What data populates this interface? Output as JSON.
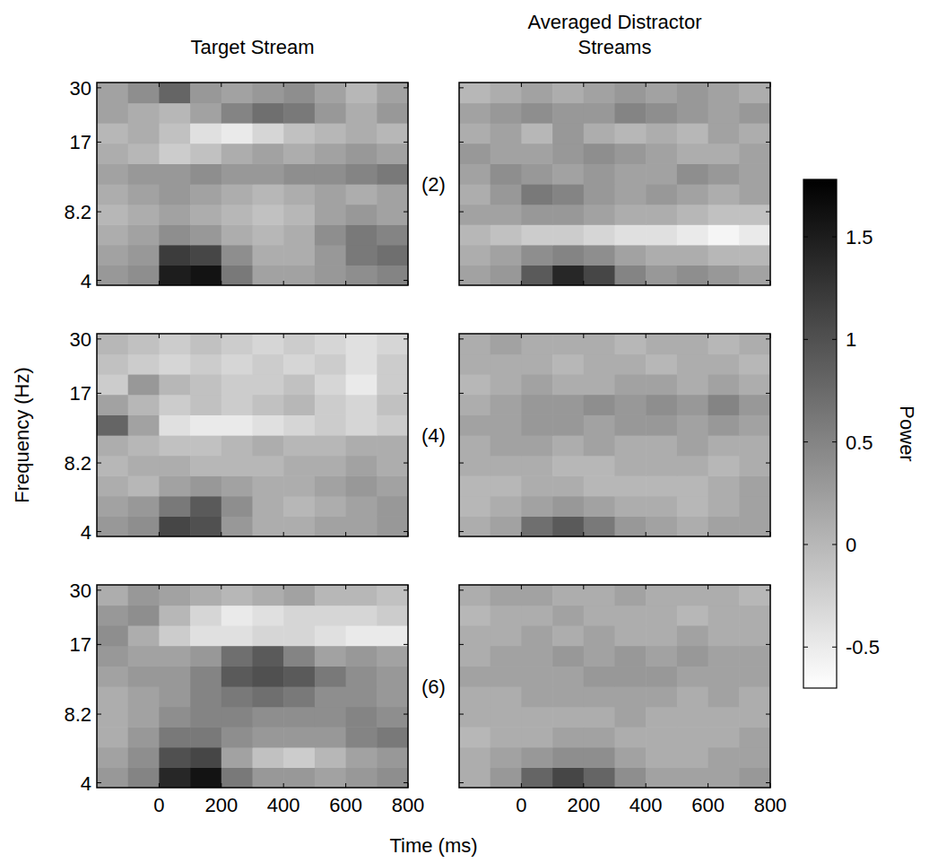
{
  "chart_data": {
    "type": "heatmap",
    "column_titles": [
      "Target Stream",
      "Averaged Distractor Streams"
    ],
    "row_labels": [
      "(2)",
      "(4)",
      "(6)"
    ],
    "xlabel": "Time (ms)",
    "ylabel": "Frequency (Hz)",
    "log": "y",
    "xlim": [
      -200,
      800
    ],
    "xticks": [
      0,
      200,
      400,
      600,
      800
    ],
    "ylim": [
      3.8,
      31.7
    ],
    "yticks": [
      4,
      8.2,
      17,
      30
    ],
    "x": [
      -150,
      -50,
      50,
      150,
      250,
      350,
      450,
      550,
      650,
      750
    ],
    "y": [
      4.23,
      5.22,
      6.46,
      7.98,
      9.87,
      12.2,
      15.1,
      18.7,
      23.1,
      28.5
    ],
    "colorbar": {
      "label": "Power",
      "range": [
        -0.7,
        1.78
      ],
      "ticks": [
        -0.5,
        0,
        0.5,
        1,
        1.5
      ]
    },
    "panels": [
      {
        "z": [
          [
            0.3,
            0.4,
            1.5,
            1.6,
            0.6,
            0.2,
            0.2,
            0.3,
            0.4,
            0.5
          ],
          [
            0.2,
            0.3,
            1.2,
            1.1,
            0.4,
            0.1,
            0.1,
            0.3,
            0.6,
            0.7
          ],
          [
            0.1,
            0.2,
            0.4,
            0.3,
            0.1,
            0,
            0.1,
            0.4,
            0.6,
            0.5
          ],
          [
            0,
            0.1,
            0.2,
            0.1,
            0,
            -0.1,
            0,
            0.2,
            0.3,
            0.2
          ],
          [
            0.1,
            0.2,
            0.3,
            0.2,
            0.1,
            0,
            0.1,
            0.2,
            0.1,
            0.2
          ],
          [
            0.2,
            0.3,
            0.3,
            0.4,
            0.3,
            0.3,
            0.4,
            0.4,
            0.5,
            0.6
          ],
          [
            0.1,
            0,
            -0.2,
            -0.1,
            0.1,
            0.2,
            0.1,
            0.2,
            0.3,
            0.2
          ],
          [
            0,
            0.1,
            -0.1,
            -0.4,
            -0.5,
            -0.3,
            -0.1,
            0,
            0.1,
            0
          ],
          [
            0.2,
            0.1,
            0,
            0.2,
            0.5,
            0.7,
            0.6,
            0.3,
            0.1,
            0.3
          ],
          [
            0.2,
            0.4,
            0.8,
            0.3,
            0.2,
            0.3,
            0.4,
            0.2,
            0,
            0.2
          ]
        ]
      },
      {
        "z": [
          [
            0.2,
            0.3,
            0.9,
            1.4,
            1.1,
            0.5,
            0.3,
            0.4,
            0.3,
            0.2
          ],
          [
            0.1,
            0.2,
            0.4,
            0.5,
            0.4,
            0.2,
            0.1,
            0.1,
            0,
            0
          ],
          [
            0,
            -0.1,
            -0.2,
            -0.2,
            -0.3,
            -0.4,
            -0.4,
            -0.5,
            -0.6,
            -0.5
          ],
          [
            0.2,
            0.2,
            0.3,
            0.3,
            0.2,
            0.1,
            0.1,
            0,
            -0.1,
            -0.1
          ],
          [
            0.1,
            0.3,
            0.6,
            0.5,
            0.3,
            0.2,
            0.3,
            0.2,
            0.1,
            0.2
          ],
          [
            0.2,
            0.4,
            0.3,
            0.2,
            0.3,
            0.2,
            0.2,
            0.4,
            0.3,
            0.2
          ],
          [
            0.3,
            0.2,
            0.2,
            0.3,
            0.4,
            0.3,
            0.2,
            0.1,
            0.1,
            0.2
          ],
          [
            0.1,
            0.2,
            0,
            0.3,
            0.1,
            0,
            0.1,
            0,
            0.2,
            0.1
          ],
          [
            0.2,
            0.3,
            0.4,
            0.3,
            0.3,
            0.5,
            0.4,
            0.3,
            0.2,
            0.3
          ],
          [
            0,
            0.1,
            0.2,
            0.1,
            0.2,
            0.3,
            0.2,
            0.3,
            0.2,
            0.1
          ]
        ]
      },
      {
        "z": [
          [
            0.3,
            0.4,
            1.1,
            1.0,
            0.3,
            0.1,
            0.1,
            0.2,
            0.2,
            0.3
          ],
          [
            0.2,
            0.3,
            0.6,
            0.9,
            0.4,
            0.1,
            0,
            0.1,
            0.2,
            0.3
          ],
          [
            0.1,
            0,
            0.2,
            0.3,
            0.2,
            0.1,
            0.1,
            0.2,
            0.3,
            0.2
          ],
          [
            0,
            0.1,
            0.1,
            0,
            0,
            0,
            0.1,
            0.1,
            0.2,
            0.1
          ],
          [
            0.1,
            0,
            -0.1,
            -0.1,
            0,
            0.1,
            0,
            0,
            0.1,
            0.1
          ],
          [
            0.8,
            0.2,
            -0.4,
            -0.5,
            -0.5,
            -0.4,
            -0.3,
            -0.2,
            -0.3,
            -0.2
          ],
          [
            0.2,
            0,
            -0.2,
            -0.1,
            -0.2,
            -0.1,
            0,
            -0.2,
            -0.3,
            -0.1
          ],
          [
            -0.2,
            0.3,
            0,
            -0.1,
            -0.2,
            -0.2,
            -0.1,
            -0.3,
            -0.5,
            -0.2
          ],
          [
            -0.1,
            -0.2,
            -0.3,
            -0.2,
            -0.3,
            -0.2,
            -0.3,
            -0.2,
            -0.4,
            -0.2
          ],
          [
            0,
            -0.1,
            -0.2,
            -0.1,
            -0.2,
            -0.3,
            -0.2,
            -0.3,
            -0.4,
            -0.3
          ]
        ]
      },
      {
        "z": [
          [
            0.1,
            0.2,
            0.7,
            0.9,
            0.6,
            0.3,
            0.2,
            0.1,
            0.2,
            0.2
          ],
          [
            0,
            0.1,
            0.2,
            0.3,
            0.2,
            0.1,
            0.1,
            0,
            0.1,
            0.2
          ],
          [
            0,
            0,
            0.1,
            0.1,
            0,
            0,
            0,
            0,
            0.1,
            0.2
          ],
          [
            0.1,
            0.1,
            0.1,
            0,
            0,
            0.1,
            0.1,
            0.1,
            0,
            0.1
          ],
          [
            0.1,
            0.2,
            0.2,
            0.1,
            0.2,
            0.1,
            0.1,
            0.2,
            0.1,
            0.1
          ],
          [
            0.2,
            0.2,
            0.3,
            0.3,
            0.2,
            0.3,
            0.3,
            0.2,
            0.3,
            0.2
          ],
          [
            0.1,
            0.2,
            0.3,
            0.3,
            0.4,
            0.3,
            0.4,
            0.3,
            0.5,
            0.3
          ],
          [
            0,
            0.1,
            0.2,
            0.1,
            0.1,
            0.2,
            0.2,
            0.1,
            0.2,
            0.1
          ],
          [
            0.1,
            0.1,
            0.1,
            0,
            0.1,
            0.1,
            0,
            0.1,
            0.1,
            0
          ],
          [
            0.1,
            0.2,
            0.1,
            0.1,
            0.1,
            0,
            0.1,
            0.1,
            0,
            0.1
          ]
        ]
      },
      {
        "z": [
          [
            0.3,
            0.5,
            1.4,
            1.6,
            0.6,
            0.3,
            0.3,
            0.2,
            0.3,
            0.4
          ],
          [
            0.2,
            0.4,
            1.0,
            1.1,
            0.2,
            -0.1,
            -0.2,
            0,
            0.2,
            0.3
          ],
          [
            0.1,
            0.3,
            0.6,
            0.6,
            0.4,
            0.3,
            0.3,
            0.3,
            0.5,
            0.6
          ],
          [
            0.1,
            0.2,
            0.4,
            0.5,
            0.5,
            0.4,
            0.4,
            0.4,
            0.5,
            0.4
          ],
          [
            0.1,
            0.2,
            0.3,
            0.5,
            0.6,
            0.7,
            0.6,
            0.4,
            0.4,
            0.3
          ],
          [
            0.2,
            0.3,
            0.3,
            0.5,
            0.9,
            1.0,
            0.9,
            0.6,
            0.4,
            0.3
          ],
          [
            0.3,
            0.2,
            0.2,
            0.3,
            0.7,
            0.9,
            0.5,
            0.2,
            0.3,
            0.2
          ],
          [
            0.4,
            0.1,
            -0.2,
            -0.4,
            -0.4,
            -0.3,
            -0.3,
            -0.4,
            -0.5,
            -0.5
          ],
          [
            0.3,
            0.4,
            0,
            -0.3,
            -0.5,
            -0.4,
            -0.3,
            -0.3,
            -0.3,
            -0.2
          ],
          [
            0.1,
            0.3,
            0.2,
            0.1,
            0,
            0.1,
            0.2,
            0,
            0,
            -0.1
          ]
        ]
      },
      {
        "z": [
          [
            0.1,
            0.3,
            0.8,
            1.1,
            0.8,
            0.4,
            0.2,
            0.2,
            0.2,
            0.3
          ],
          [
            0.1,
            0.2,
            0.3,
            0.4,
            0.4,
            0.2,
            0.1,
            0.1,
            0.2,
            0.2
          ],
          [
            0,
            0.1,
            0.1,
            0.2,
            0.2,
            0.1,
            0.1,
            0.1,
            0.1,
            0.2
          ],
          [
            0.1,
            0.1,
            0.1,
            0.1,
            0.1,
            0.2,
            0.1,
            0.1,
            0.1,
            0.1
          ],
          [
            0.1,
            0.1,
            0.2,
            0.2,
            0.2,
            0.2,
            0.2,
            0.1,
            0.2,
            0.1
          ],
          [
            0.2,
            0.2,
            0.2,
            0.2,
            0.3,
            0.3,
            0.3,
            0.2,
            0.2,
            0.2
          ],
          [
            0.1,
            0.2,
            0.2,
            0.3,
            0.2,
            0.3,
            0.2,
            0.3,
            0.2,
            0.2
          ],
          [
            0.1,
            0.1,
            0.2,
            0.1,
            0.2,
            0.1,
            0.1,
            0.2,
            0.1,
            0.1
          ],
          [
            0,
            0.1,
            0.1,
            0.2,
            0.1,
            0.1,
            0.1,
            0,
            0.1,
            0.1
          ],
          [
            0.1,
            0.2,
            0.2,
            0.1,
            0.1,
            0.2,
            0.1,
            0.1,
            0.1,
            0
          ]
        ]
      }
    ]
  }
}
